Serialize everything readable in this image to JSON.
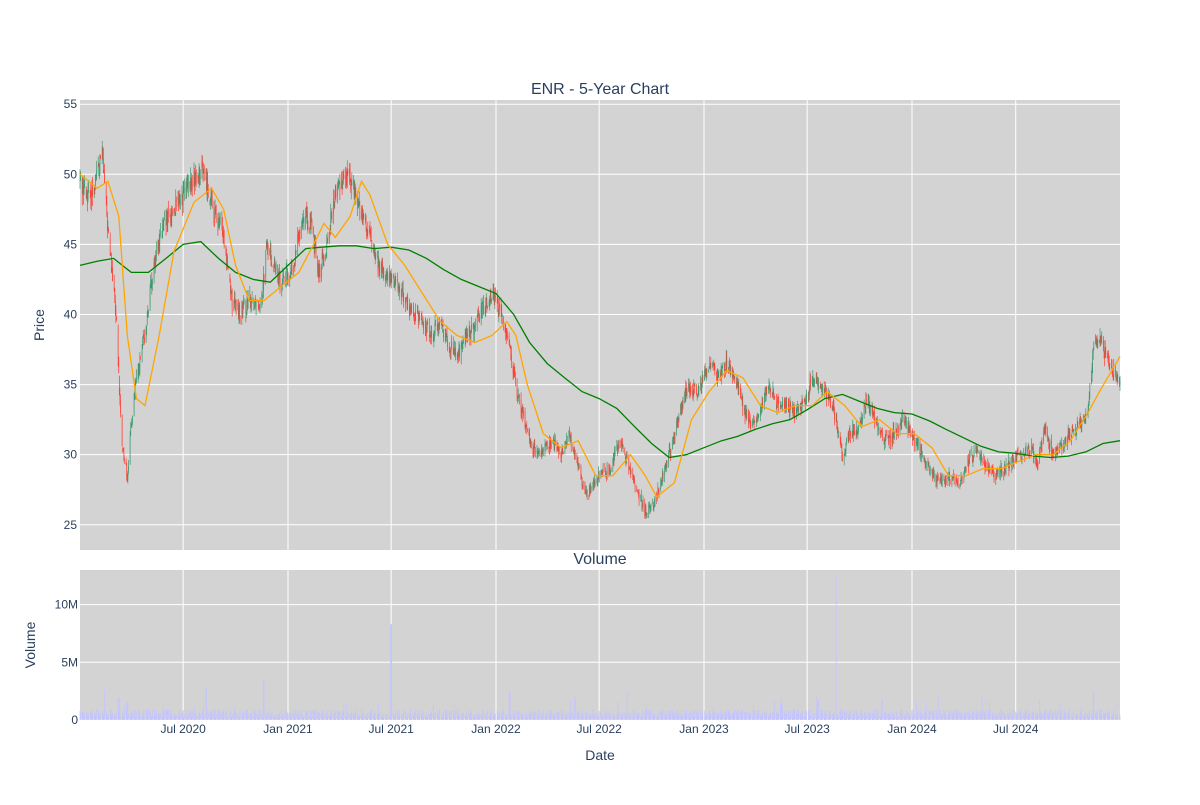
{
  "chart_data": {
    "type": "candlestick",
    "title": "ENR - 5-Year Chart",
    "x_range": [
      "2020-01-02",
      "2024-12-31"
    ],
    "x_tick_labels": [
      {
        "date": "2020-07-01",
        "label": "Jul 2020"
      },
      {
        "date": "2021-01-01",
        "label": "Jan 2021"
      },
      {
        "date": "2021-07-01",
        "label": "Jul 2021"
      },
      {
        "date": "2022-01-01",
        "label": "Jan 2022"
      },
      {
        "date": "2022-07-01",
        "label": "Jul 2022"
      },
      {
        "date": "2023-01-01",
        "label": "Jan 2023"
      },
      {
        "date": "2023-07-01",
        "label": "Jul 2023"
      },
      {
        "date": "2024-01-01",
        "label": "Jan 2024"
      },
      {
        "date": "2024-07-01",
        "label": "Jul 2024"
      }
    ],
    "xlabel": "Date",
    "price_panel": {
      "ylabel": "Price",
      "ylim": [
        23.2,
        55.3
      ],
      "y_ticks": [
        25,
        30,
        35,
        40,
        45,
        50,
        55
      ],
      "close_path": [
        [
          "2020-01-02",
          49.5
        ],
        [
          "2020-01-20",
          48.2
        ],
        [
          "2020-02-10",
          51.5
        ],
        [
          "2020-02-20",
          46
        ],
        [
          "2020-03-05",
          40
        ],
        [
          "2020-03-15",
          31
        ],
        [
          "2020-03-25",
          28.5
        ],
        [
          "2020-04-05",
          34
        ],
        [
          "2020-04-25",
          38.5
        ],
        [
          "2020-05-10",
          43.5
        ],
        [
          "2020-05-25",
          46
        ],
        [
          "2020-06-15",
          47.5
        ],
        [
          "2020-07-10",
          49
        ],
        [
          "2020-08-05",
          50.5
        ],
        [
          "2020-08-25",
          47
        ],
        [
          "2020-09-10",
          46
        ],
        [
          "2020-09-25",
          41
        ],
        [
          "2020-10-10",
          40
        ],
        [
          "2020-10-25",
          41
        ],
        [
          "2020-11-15",
          41
        ],
        [
          "2020-11-25",
          45
        ],
        [
          "2020-12-15",
          42.5
        ],
        [
          "2021-01-10",
          43
        ],
        [
          "2021-01-25",
          47
        ],
        [
          "2021-02-10",
          46.5
        ],
        [
          "2021-02-25",
          43
        ],
        [
          "2021-03-10",
          45
        ],
        [
          "2021-03-25",
          48.5
        ],
        [
          "2021-04-10",
          50
        ],
        [
          "2021-04-25",
          49.5
        ],
        [
          "2021-05-10",
          47
        ],
        [
          "2021-05-25",
          45.5
        ],
        [
          "2021-06-10",
          43.5
        ],
        [
          "2021-06-25",
          42.5
        ],
        [
          "2021-07-10",
          42.5
        ],
        [
          "2021-07-25",
          41
        ],
        [
          "2021-08-10",
          40
        ],
        [
          "2021-08-25",
          39.5
        ],
        [
          "2021-09-10",
          38.5
        ],
        [
          "2021-09-25",
          39.5
        ],
        [
          "2021-10-10",
          38
        ],
        [
          "2021-10-25",
          37
        ],
        [
          "2021-11-10",
          38.5
        ],
        [
          "2021-11-25",
          39
        ],
        [
          "2021-12-10",
          40.5
        ],
        [
          "2021-12-25",
          41.5
        ],
        [
          "2022-01-10",
          40
        ],
        [
          "2022-01-25",
          38
        ],
        [
          "2022-02-05",
          34.5
        ],
        [
          "2022-02-20",
          32.5
        ],
        [
          "2022-03-05",
          30.5
        ],
        [
          "2022-03-20",
          30
        ],
        [
          "2022-04-10",
          31
        ],
        [
          "2022-04-25",
          30
        ],
        [
          "2022-05-10",
          31.5
        ],
        [
          "2022-05-25",
          29
        ],
        [
          "2022-06-10",
          27
        ],
        [
          "2022-06-20",
          28
        ],
        [
          "2022-07-01",
          28.5
        ],
        [
          "2022-07-20",
          29
        ],
        [
          "2022-08-05",
          31
        ],
        [
          "2022-08-20",
          29.5
        ],
        [
          "2022-09-05",
          27.5
        ],
        [
          "2022-09-20",
          26
        ],
        [
          "2022-10-05",
          26.5
        ],
        [
          "2022-10-20",
          28.5
        ],
        [
          "2022-11-05",
          30.5
        ],
        [
          "2022-11-20",
          33
        ],
        [
          "2022-12-05",
          35
        ],
        [
          "2022-12-20",
          34.5
        ],
        [
          "2023-01-10",
          36.5
        ],
        [
          "2023-01-25",
          35.5
        ],
        [
          "2023-02-10",
          36.5
        ],
        [
          "2023-02-25",
          35.5
        ],
        [
          "2023-03-10",
          33.5
        ],
        [
          "2023-03-25",
          32
        ],
        [
          "2023-04-10",
          33
        ],
        [
          "2023-04-25",
          35
        ],
        [
          "2023-05-10",
          33.5
        ],
        [
          "2023-05-25",
          33.5
        ],
        [
          "2023-06-10",
          33
        ],
        [
          "2023-06-25",
          33.5
        ],
        [
          "2023-07-10",
          35.5
        ],
        [
          "2023-07-25",
          35
        ],
        [
          "2023-08-10",
          34
        ],
        [
          "2023-08-20",
          32.5
        ],
        [
          "2023-09-01",
          30
        ],
        [
          "2023-09-15",
          31.5
        ],
        [
          "2023-10-01",
          32
        ],
        [
          "2023-10-15",
          34
        ],
        [
          "2023-11-01",
          32
        ],
        [
          "2023-11-15",
          31
        ],
        [
          "2023-12-01",
          31.5
        ],
        [
          "2023-12-15",
          32.5
        ],
        [
          "2024-01-05",
          31
        ],
        [
          "2024-01-20",
          30
        ],
        [
          "2024-02-05",
          28.5
        ],
        [
          "2024-02-20",
          28
        ],
        [
          "2024-03-10",
          28.5
        ],
        [
          "2024-03-25",
          28
        ],
        [
          "2024-04-10",
          29.5
        ],
        [
          "2024-04-25",
          30.5
        ],
        [
          "2024-05-10",
          29
        ],
        [
          "2024-05-25",
          28.5
        ],
        [
          "2024-06-10",
          29
        ],
        [
          "2024-06-25",
          29.5
        ],
        [
          "2024-07-10",
          30
        ],
        [
          "2024-07-25",
          30.5
        ],
        [
          "2024-08-10",
          29.5
        ],
        [
          "2024-08-20",
          32
        ],
        [
          "2024-09-05",
          30
        ],
        [
          "2024-09-20",
          30.5
        ],
        [
          "2024-10-05",
          31.5
        ],
        [
          "2024-10-20",
          32
        ],
        [
          "2024-11-05",
          33
        ],
        [
          "2024-11-15",
          38
        ],
        [
          "2024-11-25",
          38.5
        ],
        [
          "2024-12-10",
          36.5
        ],
        [
          "2024-12-31",
          35
        ]
      ],
      "ma_short": {
        "color": "#ffa500",
        "points": [
          [
            "2020-01-02",
            50
          ],
          [
            "2020-02-01",
            49
          ],
          [
            "2020-02-20",
            49.5
          ],
          [
            "2020-03-10",
            47
          ],
          [
            "2020-03-25",
            38.5
          ],
          [
            "2020-04-10",
            34
          ],
          [
            "2020-04-25",
            33.5
          ],
          [
            "2020-05-20",
            38.5
          ],
          [
            "2020-06-15",
            44.5
          ],
          [
            "2020-07-20",
            48
          ],
          [
            "2020-08-20",
            49
          ],
          [
            "2020-09-10",
            47.5
          ],
          [
            "2020-10-01",
            43.5
          ],
          [
            "2020-10-25",
            41
          ],
          [
            "2020-11-20",
            41
          ],
          [
            "2020-12-20",
            42
          ],
          [
            "2021-01-20",
            43
          ],
          [
            "2021-02-15",
            45
          ],
          [
            "2021-03-05",
            46.5
          ],
          [
            "2021-03-25",
            45.5
          ],
          [
            "2021-04-20",
            47
          ],
          [
            "2021-05-10",
            49.5
          ],
          [
            "2021-05-25",
            48.5
          ],
          [
            "2021-06-25",
            45
          ],
          [
            "2021-07-25",
            43.5
          ],
          [
            "2021-08-25",
            41.5
          ],
          [
            "2021-09-25",
            39.5
          ],
          [
            "2021-10-25",
            38.5
          ],
          [
            "2021-11-25",
            38
          ],
          [
            "2021-12-25",
            38.5
          ],
          [
            "2022-01-20",
            39.5
          ],
          [
            "2022-02-05",
            38.5
          ],
          [
            "2022-02-25",
            35
          ],
          [
            "2022-03-25",
            31.5
          ],
          [
            "2022-04-25",
            30.5
          ],
          [
            "2022-05-25",
            31
          ],
          [
            "2022-06-25",
            28.5
          ],
          [
            "2022-07-25",
            28.5
          ],
          [
            "2022-08-25",
            30
          ],
          [
            "2022-09-20",
            28.5
          ],
          [
            "2022-10-10",
            27
          ],
          [
            "2022-11-10",
            28
          ],
          [
            "2022-12-10",
            32.5
          ],
          [
            "2023-01-10",
            34.5
          ],
          [
            "2023-02-10",
            36
          ],
          [
            "2023-03-10",
            35.5
          ],
          [
            "2023-04-10",
            33.5
          ],
          [
            "2023-05-10",
            33
          ],
          [
            "2023-06-10",
            33.5
          ],
          [
            "2023-07-10",
            33.5
          ],
          [
            "2023-08-05",
            34.5
          ],
          [
            "2023-09-05",
            33.5
          ],
          [
            "2023-10-05",
            32
          ],
          [
            "2023-11-05",
            32.5
          ],
          [
            "2023-12-05",
            31.5
          ],
          [
            "2024-01-05",
            31.5
          ],
          [
            "2024-02-05",
            30.5
          ],
          [
            "2024-03-05",
            28.5
          ],
          [
            "2024-04-05",
            28.5
          ],
          [
            "2024-05-05",
            29
          ],
          [
            "2024-06-05",
            29
          ],
          [
            "2024-07-05",
            29.5
          ],
          [
            "2024-08-05",
            30
          ],
          [
            "2024-09-05",
            30
          ],
          [
            "2024-10-05",
            31
          ],
          [
            "2024-11-05",
            33
          ],
          [
            "2024-11-25",
            34.5
          ],
          [
            "2024-12-31",
            37
          ]
        ]
      },
      "ma_long": {
        "color": "#008000",
        "points": [
          [
            "2020-01-02",
            43.5
          ],
          [
            "2020-02-01",
            43.8
          ],
          [
            "2020-03-01",
            44
          ],
          [
            "2020-04-01",
            43
          ],
          [
            "2020-05-01",
            43
          ],
          [
            "2020-06-01",
            44
          ],
          [
            "2020-07-01",
            45
          ],
          [
            "2020-08-01",
            45.2
          ],
          [
            "2020-09-01",
            44
          ],
          [
            "2020-10-01",
            43
          ],
          [
            "2020-11-01",
            42.5
          ],
          [
            "2020-12-01",
            42.3
          ],
          [
            "2021-01-01",
            43.5
          ],
          [
            "2021-02-01",
            44.7
          ],
          [
            "2021-03-01",
            44.8
          ],
          [
            "2021-04-01",
            44.9
          ],
          [
            "2021-05-01",
            44.9
          ],
          [
            "2021-06-01",
            44.7
          ],
          [
            "2021-07-01",
            44.8
          ],
          [
            "2021-08-01",
            44.6
          ],
          [
            "2021-09-01",
            44
          ],
          [
            "2021-10-01",
            43.2
          ],
          [
            "2021-11-01",
            42.5
          ],
          [
            "2021-12-01",
            42
          ],
          [
            "2022-01-01",
            41.5
          ],
          [
            "2022-02-01",
            40
          ],
          [
            "2022-03-01",
            38
          ],
          [
            "2022-04-01",
            36.5
          ],
          [
            "2022-05-01",
            35.5
          ],
          [
            "2022-06-01",
            34.5
          ],
          [
            "2022-07-01",
            34
          ],
          [
            "2022-08-01",
            33.3
          ],
          [
            "2022-09-01",
            32
          ],
          [
            "2022-10-01",
            30.8
          ],
          [
            "2022-11-01",
            29.8
          ],
          [
            "2022-12-01",
            30
          ],
          [
            "2023-01-01",
            30.5
          ],
          [
            "2023-02-01",
            31
          ],
          [
            "2023-03-01",
            31.3
          ],
          [
            "2023-04-01",
            31.8
          ],
          [
            "2023-05-01",
            32.2
          ],
          [
            "2023-06-01",
            32.5
          ],
          [
            "2023-07-01",
            33.2
          ],
          [
            "2023-08-01",
            34
          ],
          [
            "2023-09-01",
            34.3
          ],
          [
            "2023-10-01",
            33.8
          ],
          [
            "2023-11-01",
            33.3
          ],
          [
            "2023-12-01",
            33
          ],
          [
            "2024-01-01",
            32.9
          ],
          [
            "2024-02-01",
            32.4
          ],
          [
            "2024-03-01",
            31.8
          ],
          [
            "2024-04-01",
            31.2
          ],
          [
            "2024-05-01",
            30.6
          ],
          [
            "2024-06-01",
            30.2
          ],
          [
            "2024-07-01",
            30.1
          ],
          [
            "2024-08-01",
            29.9
          ],
          [
            "2024-09-01",
            29.8
          ],
          [
            "2024-10-01",
            29.9
          ],
          [
            "2024-11-01",
            30.2
          ],
          [
            "2024-12-01",
            30.8
          ],
          [
            "2024-12-31",
            31
          ]
        ]
      }
    },
    "volume_panel": {
      "title": "Volume",
      "ylabel": "Volume",
      "ylim": [
        0,
        13000000
      ],
      "y_ticks": [
        {
          "value": 0,
          "label": "0"
        },
        {
          "value": 5000000,
          "label": "5M"
        },
        {
          "value": 10000000,
          "label": "10M"
        }
      ],
      "bar_color": "#c4c4ff",
      "baseline": 700000,
      "spikes": [
        [
          "2020-02-15",
          2600000
        ],
        [
          "2020-03-10",
          1900000
        ],
        [
          "2020-03-25",
          1500000
        ],
        [
          "2020-08-10",
          2800000
        ],
        [
          "2020-11-20",
          3500000
        ],
        [
          "2021-07-01",
          8300000
        ],
        [
          "2022-01-25",
          2400000
        ],
        [
          "2022-05-20",
          2000000
        ],
        [
          "2022-08-20",
          2400000
        ],
        [
          "2023-05-15",
          1500000
        ],
        [
          "2023-07-20",
          1700000
        ],
        [
          "2023-08-20",
          12500000
        ],
        [
          "2023-11-10",
          1700000
        ],
        [
          "2024-11-15",
          2400000
        ]
      ]
    }
  }
}
